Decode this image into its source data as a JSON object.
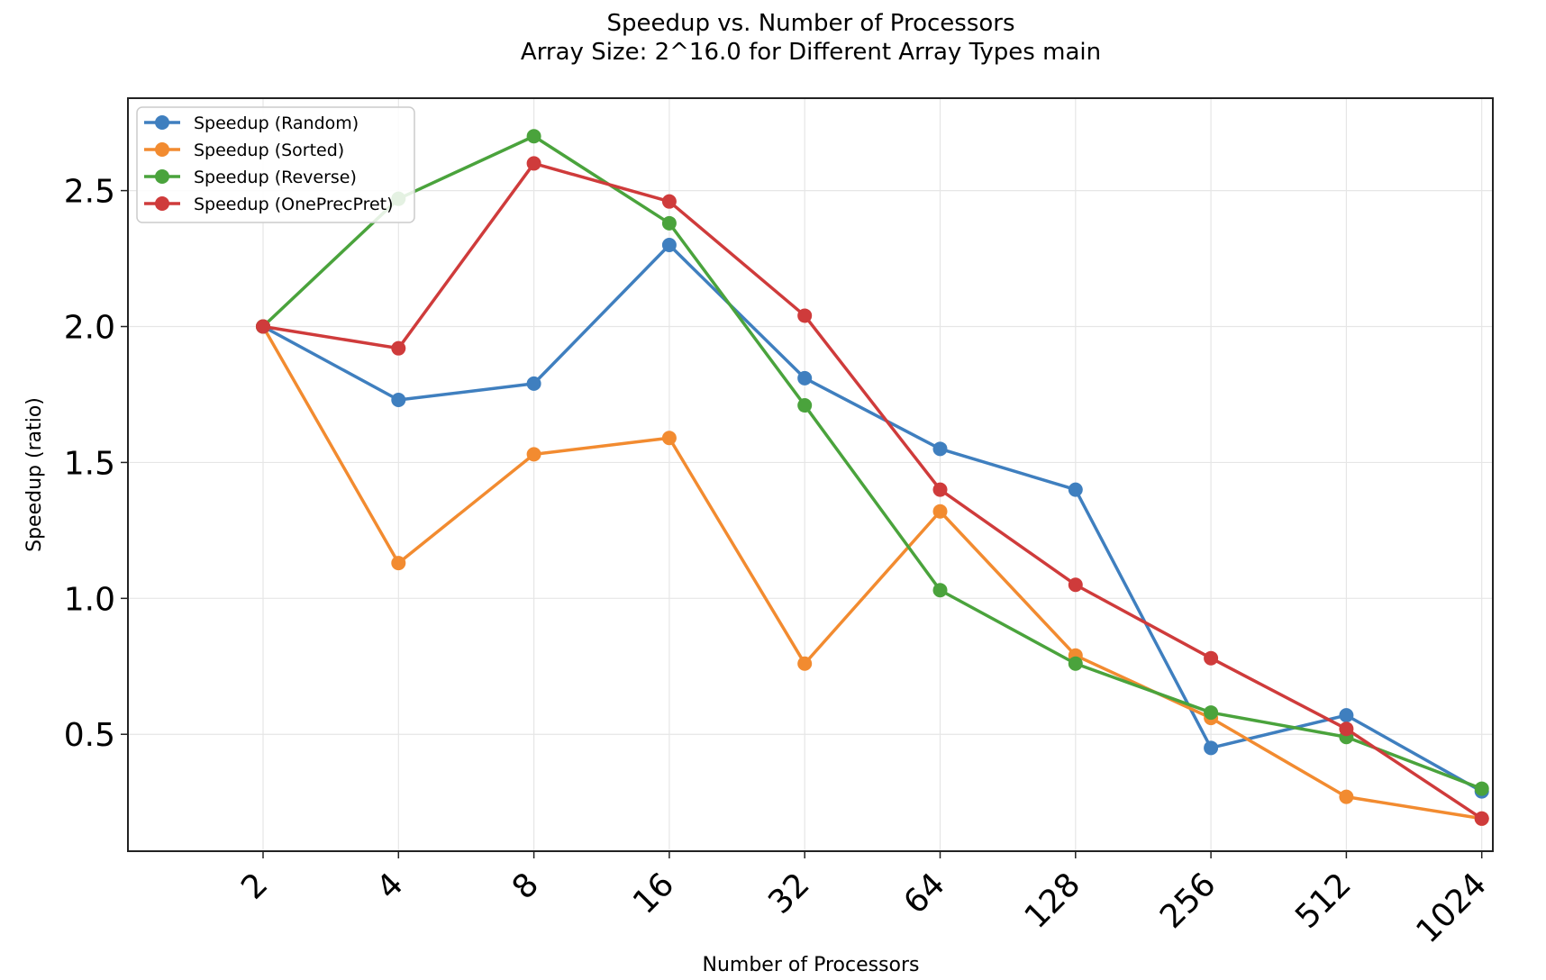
{
  "chart_data": {
    "type": "line",
    "title": "Speedup vs. Number of Processors",
    "subtitle": "Array Size: 2^16.0 for Different Array Types main",
    "xlabel": "Number of Processors",
    "ylabel": "Speedup (ratio)",
    "x": [
      "2",
      "4",
      "8",
      "16",
      "32",
      "64",
      "128",
      "256",
      "512",
      "1024"
    ],
    "x_scale": "categorical",
    "xlim": [
      0,
      10.1
    ],
    "ylim": [
      0.07,
      2.84
    ],
    "yticks": [
      0.5,
      1.0,
      1.5,
      2.0,
      2.5
    ],
    "ytick_labels": [
      "0.5",
      "1.0",
      "1.5",
      "2.0",
      "2.5"
    ],
    "grid": true,
    "legend_position": "top-left",
    "series": [
      {
        "name": "Speedup (Random)",
        "color": "#3f7fbf",
        "values": [
          2.0,
          1.73,
          1.79,
          2.3,
          1.81,
          1.55,
          1.4,
          0.45,
          0.57,
          0.29
        ]
      },
      {
        "name": "Speedup (Sorted)",
        "color": "#f28b30",
        "values": [
          2.0,
          1.13,
          1.53,
          1.59,
          0.76,
          1.32,
          0.79,
          0.56,
          0.27,
          0.19
        ]
      },
      {
        "name": "Speedup (Reverse)",
        "color": "#4aa33c",
        "values": [
          2.0,
          2.47,
          2.7,
          2.38,
          1.71,
          1.03,
          0.76,
          0.58,
          0.49,
          0.3
        ]
      },
      {
        "name": "Speedup (OnePrecPret)",
        "color": "#cf3b3b",
        "values": [
          2.0,
          1.92,
          2.6,
          2.46,
          2.04,
          1.4,
          1.05,
          0.78,
          0.52,
          0.19
        ]
      }
    ]
  }
}
